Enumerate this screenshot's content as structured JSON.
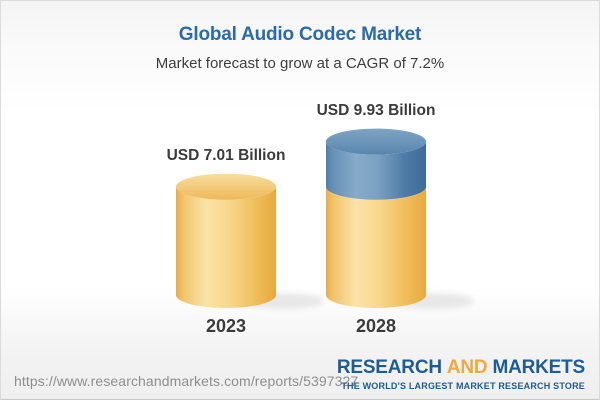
{
  "header": {
    "title": "Global Audio Codec Market",
    "subtitle": "Market forecast to grow at a CAGR of 7.2%"
  },
  "chart_data": {
    "type": "bar",
    "subtype": "3d-cylinder",
    "categories": [
      "2023",
      "2028"
    ],
    "values": [
      7.01,
      9.93
    ],
    "value_labels": [
      "USD 7.01 Billion",
      "USD 9.93 Billion"
    ],
    "unit": "USD Billion",
    "growth_note": "CAGR of 7.2%",
    "ylim": [
      0,
      9.93
    ],
    "grid": false,
    "legend_position": "none",
    "colors": {
      "base_segment_gold": "#F5CE7E",
      "growth_segment_blue": "#5E8CB4",
      "label_text": "#3B3B3B"
    }
  },
  "footer": {
    "url": "https://www.researchandmarkets.com/reports/5397327",
    "logo": {
      "word1": "RESEARCH",
      "word2": "AND",
      "word3": "MARKETS",
      "tagline": "THE WORLD'S LARGEST MARKET RESEARCH STORE",
      "brand_blue": "#1D5C97",
      "brand_gold": "#F2A83D"
    }
  },
  "theme": {
    "title_color": "#2A6BAE",
    "text_color": "#3E3E3E",
    "url_color": "#8E8E8E",
    "background_top": "#F4F4F4",
    "background_bottom": "#EFEFEF"
  }
}
